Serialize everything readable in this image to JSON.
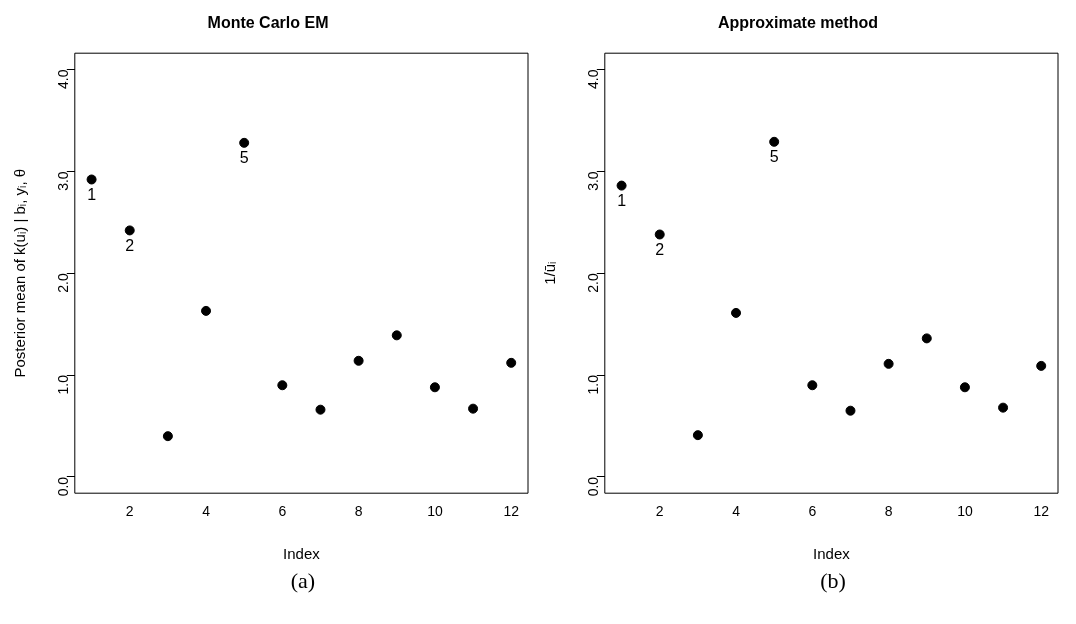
{
  "chart_data": [
    {
      "type": "scatter",
      "title": "Monte Carlo EM",
      "xlabel": "Index",
      "ylabel": "Posterior mean of k(uᵢ) | bᵢ, yᵢ, θ",
      "x": [
        1,
        2,
        3,
        4,
        5,
        6,
        7,
        8,
        9,
        10,
        11,
        12
      ],
      "values": [
        2.92,
        2.42,
        0.4,
        1.63,
        3.28,
        0.9,
        0.66,
        1.14,
        1.39,
        0.88,
        0.67,
        1.12
      ],
      "color": "#000000",
      "marker": "circle",
      "xlim": [
        0.56,
        12.44
      ],
      "xticks": [
        2,
        4,
        6,
        8,
        10,
        12
      ],
      "ylim": [
        -0.16,
        4.16
      ],
      "yticks": [
        {
          "value": 0,
          "label": "0.0"
        },
        {
          "value": 1,
          "label": "1.0"
        },
        {
          "value": 2,
          "label": "2.0"
        },
        {
          "value": 3,
          "label": "3.0"
        },
        {
          "value": 4,
          "label": "4.0"
        }
      ],
      "grid": false,
      "legend": false,
      "annotations": [
        {
          "text": "1",
          "x": 1,
          "y": 2.92
        },
        {
          "text": "2",
          "x": 2,
          "y": 2.42
        },
        {
          "text": "5",
          "x": 5,
          "y": 3.28
        },
        "(a)"
      ]
    },
    {
      "type": "scatter",
      "title": "Approximate method",
      "xlabel": "Index",
      "ylabel": "1/ūᵢ",
      "x": [
        1,
        2,
        3,
        4,
        5,
        6,
        7,
        8,
        9,
        10,
        11,
        12
      ],
      "values": [
        2.86,
        2.38,
        0.41,
        1.61,
        3.29,
        0.9,
        0.65,
        1.11,
        1.36,
        0.88,
        0.68,
        1.09
      ],
      "color": "#000000",
      "marker": "circle",
      "xlim": [
        0.56,
        12.44
      ],
      "xticks": [
        2,
        4,
        6,
        8,
        10,
        12
      ],
      "ylim": [
        -0.16,
        4.16
      ],
      "yticks": [
        {
          "value": 0,
          "label": "0.0"
        },
        {
          "value": 1,
          "label": "1.0"
        },
        {
          "value": 2,
          "label": "2.0"
        },
        {
          "value": 3,
          "label": "3.0"
        },
        {
          "value": 4,
          "label": "4.0"
        }
      ],
      "grid": false,
      "legend": false,
      "annotations": [
        {
          "text": "1",
          "x": 1,
          "y": 2.86
        },
        {
          "text": "2",
          "x": 2,
          "y": 2.38
        },
        {
          "text": "5",
          "x": 5,
          "y": 3.29
        },
        "(b)"
      ]
    }
  ]
}
